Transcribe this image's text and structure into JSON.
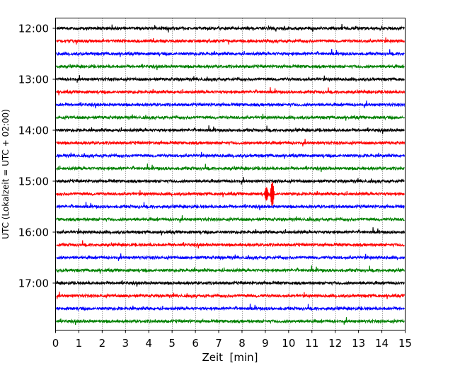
{
  "chart_data": {
    "type": "line",
    "title": "",
    "xlabel": "Zeit  [min]",
    "ylabel": "UTC (Lokalzeit = UTC + 02:00)",
    "xlim": [
      0,
      15
    ],
    "x_ticks": [
      "0",
      "1",
      "2",
      "3",
      "4",
      "5",
      "6",
      "7",
      "8",
      "9",
      "10",
      "11",
      "12",
      "13",
      "14",
      "15"
    ],
    "y_tick_labels": [
      "12:00",
      "13:00",
      "14:00",
      "15:00",
      "16:00",
      "17:00"
    ],
    "grid": "vertical dotted at each minute",
    "trace_interval_min": 15,
    "color_cycle": [
      "#000000",
      "#ff0000",
      "#0000ff",
      "#008000"
    ],
    "series": [
      {
        "start": "12:00",
        "color": "#000000"
      },
      {
        "start": "12:15",
        "color": "#ff0000"
      },
      {
        "start": "12:30",
        "color": "#0000ff"
      },
      {
        "start": "12:45",
        "color": "#008000"
      },
      {
        "start": "13:00",
        "color": "#000000"
      },
      {
        "start": "13:15",
        "color": "#ff0000"
      },
      {
        "start": "13:30",
        "color": "#0000ff"
      },
      {
        "start": "13:45",
        "color": "#008000"
      },
      {
        "start": "14:00",
        "color": "#000000"
      },
      {
        "start": "14:15",
        "color": "#ff0000"
      },
      {
        "start": "14:30",
        "color": "#0000ff"
      },
      {
        "start": "14:45",
        "color": "#008000"
      },
      {
        "start": "15:00",
        "color": "#000000"
      },
      {
        "start": "15:15",
        "color": "#ff0000",
        "events": [
          {
            "x": 9.05,
            "amplitude": 0.5
          },
          {
            "x": 9.3,
            "amplitude": 0.9
          }
        ]
      },
      {
        "start": "15:30",
        "color": "#0000ff"
      },
      {
        "start": "15:45",
        "color": "#008000"
      },
      {
        "start": "16:00",
        "color": "#000000"
      },
      {
        "start": "16:15",
        "color": "#ff0000"
      },
      {
        "start": "16:30",
        "color": "#0000ff"
      },
      {
        "start": "16:45",
        "color": "#008000"
      },
      {
        "start": "17:00",
        "color": "#000000"
      },
      {
        "start": "17:15",
        "color": "#ff0000"
      },
      {
        "start": "17:30",
        "color": "#0000ff"
      },
      {
        "start": "17:45",
        "color": "#008000"
      }
    ]
  }
}
